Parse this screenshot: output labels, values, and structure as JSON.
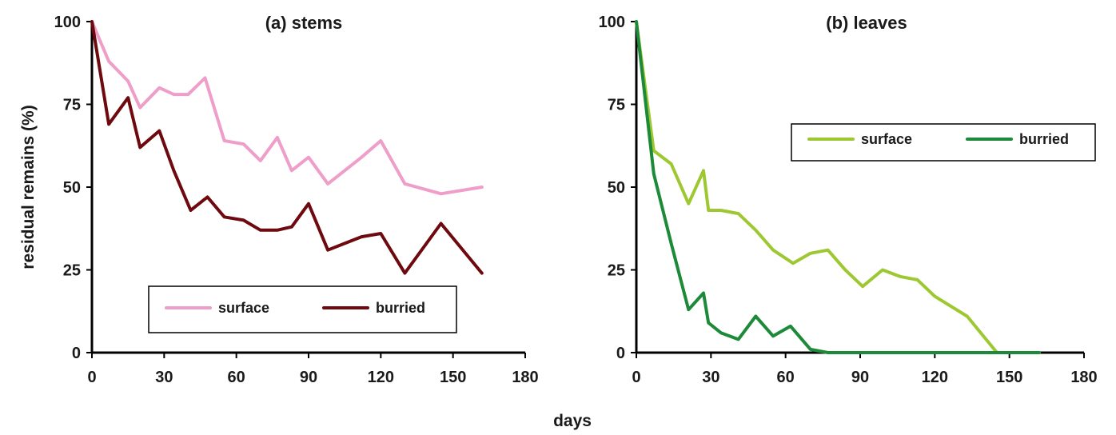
{
  "xlabel_shared": "days",
  "chart_data": [
    {
      "type": "line",
      "title": "(a) stems",
      "ylabel": "residual remains (%)",
      "xlabel": "",
      "xlim": [
        0,
        180
      ],
      "ylim": [
        0,
        100
      ],
      "xticks": [
        0,
        30,
        60,
        90,
        120,
        150,
        180
      ],
      "yticks": [
        0,
        25,
        50,
        75,
        100
      ],
      "grid": false,
      "legend": "bottom-center",
      "series": [
        {
          "name": "surface",
          "color": "#ee9ec9",
          "x": [
            0,
            7,
            15,
            20,
            28,
            34,
            40,
            47,
            55,
            63,
            70,
            77,
            83,
            90,
            98,
            105,
            112,
            120,
            130,
            145,
            162
          ],
          "y": [
            100,
            88,
            82,
            74,
            80,
            78,
            78,
            83,
            64,
            63,
            58,
            65,
            55,
            59,
            51,
            55,
            59,
            64,
            51,
            48,
            50
          ]
        },
        {
          "name": "burried",
          "color": "#6e0a0f",
          "x": [
            0,
            7,
            15,
            20,
            28,
            34,
            41,
            48,
            55,
            63,
            70,
            77,
            83,
            90,
            98,
            105,
            112,
            120,
            130,
            145,
            162
          ],
          "y": [
            100,
            69,
            77,
            62,
            67,
            55,
            43,
            47,
            41,
            40,
            37,
            37,
            38,
            45,
            31,
            33,
            35,
            36,
            24,
            39,
            24
          ]
        }
      ]
    },
    {
      "type": "line",
      "title": "(b) leaves",
      "ylabel": "",
      "xlabel": "",
      "xlim": [
        0,
        180
      ],
      "ylim": [
        0,
        100
      ],
      "xticks": [
        0,
        30,
        60,
        90,
        120,
        150,
        180
      ],
      "yticks": [
        0,
        25,
        50,
        75,
        100
      ],
      "grid": false,
      "legend": "top-right",
      "series": [
        {
          "name": "surface",
          "color": "#9dc832",
          "x": [
            0,
            7,
            14,
            21,
            27,
            29,
            34,
            41,
            48,
            55,
            63,
            70,
            77,
            84,
            91,
            99,
            106,
            113,
            120,
            133,
            145,
            162
          ],
          "y": [
            100,
            61,
            57,
            45,
            55,
            43,
            43,
            42,
            37,
            31,
            27,
            30,
            31,
            25,
            20,
            25,
            23,
            22,
            17,
            11,
            0,
            0
          ]
        },
        {
          "name": "burried",
          "color": "#1c8a38",
          "x": [
            0,
            7,
            14,
            21,
            27,
            29,
            34,
            41,
            48,
            55,
            62,
            70,
            77,
            162
          ],
          "y": [
            100,
            54,
            33,
            13,
            18,
            9,
            6,
            4,
            11,
            5,
            8,
            1,
            0,
            0
          ]
        }
      ]
    }
  ]
}
